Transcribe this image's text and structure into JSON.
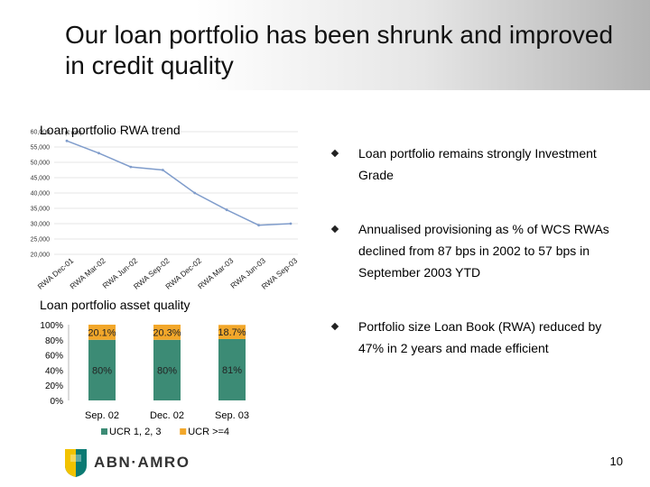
{
  "slide": {
    "title": "Our loan portfolio has been shrunk and improved in credit quality",
    "page_number": "10"
  },
  "chart_data": [
    {
      "type": "line",
      "title": "Loan portfolio RWA trend",
      "ylabel_fragment": "(€ mln)",
      "y_ticks": [
        "60,000",
        "55,000",
        "50,000",
        "45,000",
        "40,000",
        "35,000",
        "30,000",
        "25,000",
        "20,000"
      ],
      "ylim": [
        20000,
        60000
      ],
      "categories": [
        "RWA Dec-01",
        "RWA Mar-02",
        "RWA Jun-02",
        "RWA Sep-02",
        "RWA Dec-02",
        "RWA Mar-03",
        "RWA Jun-03",
        "RWA Sep-03"
      ],
      "series": [
        {
          "values": [
            57000,
            53000,
            48500,
            47500,
            40000,
            34500,
            29500,
            30000
          ]
        }
      ],
      "colors": {
        "line": "#7f9ccb",
        "grid": "#cccccc"
      }
    },
    {
      "type": "bar",
      "title": "Loan portfolio asset quality",
      "y_ticks": [
        "100%",
        "80%",
        "60%",
        "40%",
        "20%",
        "0%"
      ],
      "ylim": [
        0,
        100
      ],
      "categories": [
        "Sep. 02",
        "Dec. 02",
        "Sep. 03"
      ],
      "series": [
        {
          "name": "UCR 1, 2, 3",
          "values": [
            80,
            80,
            81
          ],
          "labels": [
            "80%",
            "80%",
            "81%"
          ],
          "color": "#3c8b75"
        },
        {
          "name": "UCR >=4",
          "values": [
            20.1,
            20.3,
            18.7
          ],
          "labels": [
            "20.1%",
            "20.3%",
            "18.7%"
          ],
          "color": "#f2a72a"
        }
      ],
      "legend_placement": "bottom"
    }
  ],
  "bullets": [
    {
      "text": "Loan portfolio remains strongly Investment Grade"
    },
    {
      "text": "Annualised provisioning as % of WCS RWAs declined from 87 bps in 2002 to 57 bps in September 2003 YTD"
    },
    {
      "text": "Portfolio size Loan Book (RWA) reduced by 47% in 2 years and made efficient"
    }
  ],
  "logo": {
    "text": "ABN·AMRO"
  }
}
